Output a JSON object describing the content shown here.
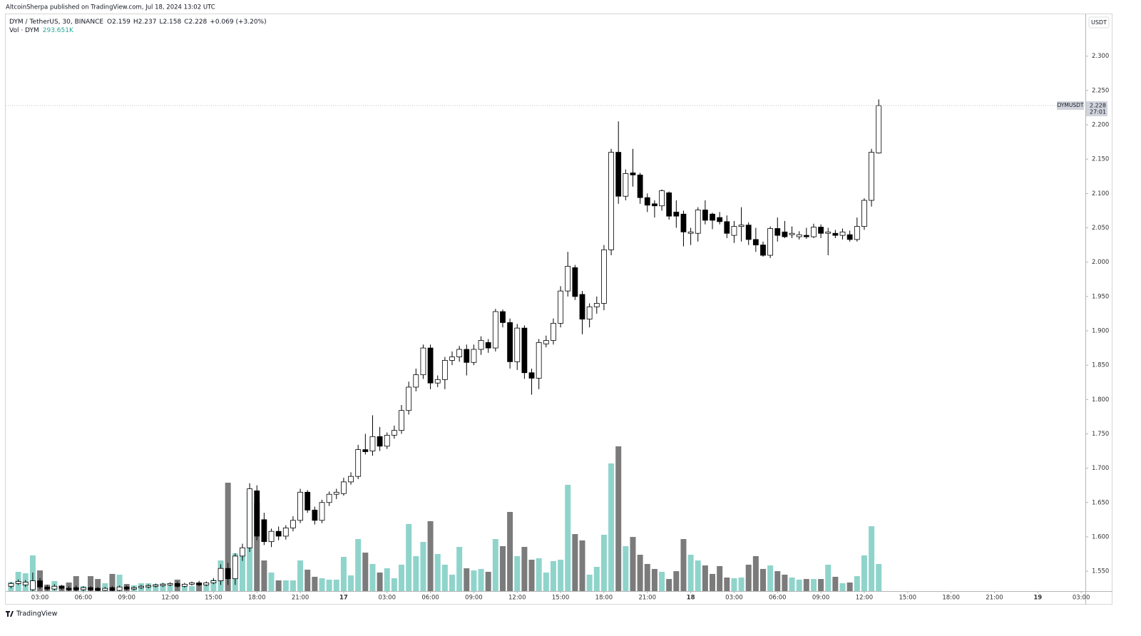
{
  "header": {
    "publisher": "AltcoinSherpa published on TradingView.com, Jul 18, 2024 13:02 UTC",
    "logo": "TradingView"
  },
  "chart_data": {
    "type": "candlestick",
    "symbol": "DYM / TetherUS, 30, BINANCE",
    "ohlc_legend": [
      "O2.159",
      "H2.237",
      "L2.158",
      "C2.228",
      "+0.069 (+3.20%)"
    ],
    "volume_label": "Vol · DYM",
    "volume_last_label": "293.651K",
    "currency": "USDT",
    "price_tag": {
      "name": "DYMUSDT",
      "label": "2.228",
      "countdown": "27:01"
    },
    "up_color": "#ffffff",
    "down_color": "#000000",
    "wick_color": "#000000",
    "volume_up_color": "#8fd4cb",
    "volume_down_color": "#7b7b7b",
    "xlim": [
      0.63,
      75.29
    ],
    "xticks": [
      {
        "value": 3,
        "label": "03:00"
      },
      {
        "value": 6,
        "label": "06:00"
      },
      {
        "value": 9,
        "label": "09:00"
      },
      {
        "value": 12,
        "label": "12:00"
      },
      {
        "value": 15,
        "label": "15:00"
      },
      {
        "value": 18,
        "label": "18:00"
      },
      {
        "value": 21,
        "label": "21:00"
      },
      {
        "value": 24,
        "label": "17"
      },
      {
        "value": 27,
        "label": "03:00"
      },
      {
        "value": 30,
        "label": "06:00"
      },
      {
        "value": 33,
        "label": "09:00"
      },
      {
        "value": 36,
        "label": "12:00"
      },
      {
        "value": 39,
        "label": "15:00"
      },
      {
        "value": 42,
        "label": "18:00"
      },
      {
        "value": 45,
        "label": "21:00"
      },
      {
        "value": 48,
        "label": "18"
      },
      {
        "value": 51,
        "label": "03:00"
      },
      {
        "value": 54,
        "label": "06:00"
      },
      {
        "value": 57,
        "label": "09:00"
      },
      {
        "value": 60,
        "label": "12:00"
      },
      {
        "value": 63,
        "label": "15:00"
      },
      {
        "value": 66,
        "label": "18:00"
      },
      {
        "value": 69,
        "label": "21:00"
      },
      {
        "value": 72,
        "label": "19"
      },
      {
        "value": 75,
        "label": "03:00"
      }
    ],
    "ylim": [
      1.521,
      2.361
    ],
    "yticks": [
      {
        "value": 1.55,
        "label": "1.550"
      },
      {
        "value": 1.6,
        "label": "1.600"
      },
      {
        "value": 1.65,
        "label": "1.650"
      },
      {
        "value": 1.7,
        "label": "1.700"
      },
      {
        "value": 1.75,
        "label": "1.750"
      },
      {
        "value": 1.8,
        "label": "1.800"
      },
      {
        "value": 1.85,
        "label": "1.850"
      },
      {
        "value": 1.9,
        "label": "1.900"
      },
      {
        "value": 1.95,
        "label": "1.950"
      },
      {
        "value": 2.0,
        "label": "2.000"
      },
      {
        "value": 2.05,
        "label": "2.050"
      },
      {
        "value": 2.1,
        "label": "2.100"
      },
      {
        "value": 2.15,
        "label": "2.150"
      },
      {
        "value": 2.2,
        "label": "2.200"
      },
      {
        "value": 2.25,
        "label": "2.250"
      },
      {
        "value": 2.3,
        "label": "2.300"
      }
    ],
    "x": [
      1,
      1.5,
      2,
      2.5,
      3,
      3.5,
      4,
      4.5,
      5,
      5.5,
      6,
      6.5,
      7,
      7.5,
      8,
      8.5,
      9,
      9.5,
      10,
      10.5,
      11,
      11.5,
      12,
      12.5,
      13,
      13.5,
      14,
      14.5,
      15,
      15.5,
      16,
      16.5,
      17,
      17.5,
      18,
      18.5,
      19,
      19.5,
      20,
      20.5,
      21,
      21.5,
      22,
      22.5,
      23,
      23.5,
      24,
      24.5,
      25,
      25.5,
      26,
      26.5,
      27,
      27.5,
      28,
      28.5,
      29,
      29.5,
      30,
      30.5,
      31,
      31.5,
      32,
      32.5,
      33,
      33.5,
      34,
      34.5,
      35,
      35.5,
      36,
      36.5,
      37,
      37.5,
      38,
      38.5,
      39,
      39.5,
      40,
      40.5,
      41,
      41.5,
      42,
      42.5,
      43,
      43.5,
      44,
      44.5,
      45,
      45.5,
      46,
      46.5,
      47,
      47.5,
      48,
      48.5,
      49,
      49.5,
      50,
      50.5,
      51,
      51.5,
      52,
      52.5,
      53,
      53.5,
      54,
      54.5,
      55,
      55.5,
      56,
      56.5,
      57,
      57.5,
      58,
      58.5,
      59,
      59.5,
      60,
      60.5,
      61
    ],
    "open": [
      1.528,
      1.532,
      1.53,
      1.523,
      1.536,
      1.527,
      1.524,
      1.528,
      1.525,
      1.526,
      1.523,
      1.526,
      1.525,
      1.522,
      1.526,
      1.522,
      1.527,
      1.524,
      1.526,
      1.527,
      1.528,
      1.529,
      1.53,
      1.532,
      1.528,
      1.531,
      1.533,
      1.53,
      1.533,
      1.536,
      1.554,
      1.539,
      1.572,
      1.584,
      1.667,
      1.625,
      1.593,
      1.608,
      1.601,
      1.613,
      1.624,
      1.665,
      1.639,
      1.624,
      1.65,
      1.662,
      1.663,
      1.68,
      1.688,
      1.727,
      1.725,
      1.746,
      1.732,
      1.748,
      1.755,
      1.784,
      1.818,
      1.836,
      1.875,
      1.824,
      1.829,
      1.857,
      1.862,
      1.873,
      1.854,
      1.873,
      1.883,
      1.875,
      1.928,
      1.912,
      1.855,
      1.904,
      1.839,
      1.831,
      1.881,
      1.886,
      1.911,
      1.958,
      1.992,
      1.953,
      1.917,
      1.935,
      1.94,
      2.018,
      2.16,
      2.096,
      2.13,
      2.127,
      2.094,
      2.085,
      2.082,
      2.101,
      2.073,
      2.07,
      2.042,
      2.042,
      2.076,
      2.07,
      2.065,
      2.059,
      2.039,
      2.052,
      2.054,
      2.033,
      2.025,
      2.01,
      2.049,
      2.044,
      2.04,
      2.037,
      2.039,
      2.037,
      2.051,
      2.042,
      2.042,
      2.039,
      2.04,
      2.033,
      2.052,
      2.09,
      2.159
    ],
    "high": [
      1.534,
      1.538,
      1.537,
      1.548,
      1.54,
      1.53,
      1.531,
      1.53,
      1.528,
      1.529,
      1.528,
      1.528,
      1.527,
      1.527,
      1.528,
      1.529,
      1.529,
      1.528,
      1.53,
      1.531,
      1.532,
      1.533,
      1.534,
      1.535,
      1.533,
      1.535,
      1.536,
      1.535,
      1.54,
      1.56,
      1.562,
      1.576,
      1.59,
      1.678,
      1.675,
      1.635,
      1.612,
      1.615,
      1.617,
      1.63,
      1.67,
      1.668,
      1.644,
      1.654,
      1.666,
      1.67,
      1.686,
      1.694,
      1.734,
      1.75,
      1.777,
      1.76,
      1.752,
      1.762,
      1.792,
      1.826,
      1.845,
      1.88,
      1.88,
      1.835,
      1.862,
      1.87,
      1.878,
      1.88,
      1.88,
      1.892,
      1.888,
      1.932,
      1.931,
      1.918,
      1.91,
      1.908,
      1.845,
      1.888,
      1.893,
      1.918,
      1.965,
      2.015,
      1.996,
      1.958,
      1.94,
      1.95,
      2.025,
      2.165,
      2.205,
      2.135,
      2.165,
      2.13,
      2.1,
      2.09,
      2.106,
      2.103,
      2.09,
      2.075,
      2.05,
      2.08,
      2.09,
      2.072,
      2.073,
      2.068,
      2.06,
      2.08,
      2.058,
      2.05,
      2.03,
      2.052,
      2.065,
      2.06,
      2.052,
      2.045,
      2.05,
      2.056,
      2.055,
      2.05,
      2.047,
      2.049,
      2.046,
      2.065,
      2.093,
      2.165,
      2.237
    ],
    "low": [
      1.525,
      1.53,
      1.527,
      1.521,
      1.524,
      1.522,
      1.522,
      1.523,
      1.521,
      1.521,
      1.521,
      1.521,
      1.521,
      1.521,
      1.521,
      1.521,
      1.522,
      1.522,
      1.524,
      1.525,
      1.526,
      1.527,
      1.528,
      1.526,
      1.526,
      1.529,
      1.528,
      1.528,
      1.531,
      1.53,
      1.53,
      1.53,
      1.565,
      1.578,
      1.595,
      1.588,
      1.585,
      1.595,
      1.596,
      1.608,
      1.62,
      1.635,
      1.618,
      1.62,
      1.645,
      1.655,
      1.66,
      1.676,
      1.684,
      1.72,
      1.718,
      1.725,
      1.728,
      1.743,
      1.75,
      1.778,
      1.812,
      1.83,
      1.815,
      1.818,
      1.815,
      1.85,
      1.855,
      1.835,
      1.85,
      1.865,
      1.868,
      1.87,
      1.905,
      1.845,
      1.843,
      1.83,
      1.807,
      1.815,
      1.876,
      1.88,
      1.905,
      1.95,
      1.945,
      1.895,
      1.905,
      1.925,
      1.93,
      2.01,
      2.085,
      2.09,
      2.11,
      2.085,
      2.073,
      2.065,
      2.075,
      2.062,
      2.05,
      2.023,
      2.025,
      2.03,
      2.055,
      2.048,
      2.055,
      2.035,
      2.028,
      2.03,
      2.025,
      2.015,
      2.008,
      2.006,
      2.03,
      2.035,
      2.035,
      2.033,
      2.034,
      2.035,
      2.035,
      2.01,
      2.035,
      2.033,
      2.03,
      2.03,
      2.047,
      2.081,
      2.158
    ],
    "close": [
      1.532,
      1.535,
      1.534,
      1.536,
      1.527,
      1.524,
      1.528,
      1.525,
      1.523,
      1.523,
      1.526,
      1.523,
      1.522,
      1.525,
      1.522,
      1.527,
      1.524,
      1.526,
      1.528,
      1.529,
      1.53,
      1.531,
      1.532,
      1.528,
      1.531,
      1.533,
      1.53,
      1.533,
      1.536,
      1.554,
      1.539,
      1.572,
      1.584,
      1.67,
      1.601,
      1.593,
      1.608,
      1.601,
      1.613,
      1.624,
      1.665,
      1.639,
      1.624,
      1.65,
      1.662,
      1.665,
      1.68,
      1.688,
      1.727,
      1.724,
      1.746,
      1.732,
      1.748,
      1.755,
      1.784,
      1.818,
      1.836,
      1.875,
      1.824,
      1.829,
      1.857,
      1.862,
      1.873,
      1.854,
      1.873,
      1.886,
      1.875,
      1.928,
      1.912,
      1.855,
      1.904,
      1.839,
      1.831,
      1.883,
      1.886,
      1.911,
      1.958,
      1.994,
      1.95,
      1.917,
      1.935,
      1.94,
      2.018,
      2.16,
      2.096,
      2.129,
      2.127,
      2.094,
      2.083,
      2.082,
      2.104,
      2.067,
      2.067,
      2.044,
      2.044,
      2.076,
      2.061,
      2.061,
      2.059,
      2.042,
      2.052,
      2.054,
      2.033,
      2.025,
      2.01,
      2.049,
      2.039,
      2.037,
      2.042,
      2.04,
      2.037,
      2.051,
      2.042,
      2.044,
      2.039,
      2.044,
      2.033,
      2.052,
      2.09,
      2.16,
      2.228
    ],
    "volume": [
      100,
      209,
      193,
      387,
      224,
      70,
      108,
      62,
      93,
      162,
      54,
      162,
      131,
      85,
      186,
      178,
      77,
      62,
      85,
      85,
      77,
      85,
      62,
      124,
      77,
      54,
      85,
      85,
      124,
      332,
      1175,
      410,
      456,
      1074,
      959,
      332,
      201,
      116,
      116,
      116,
      332,
      232,
      155,
      139,
      124,
      124,
      371,
      170,
      564,
      417,
      294,
      201,
      247,
      139,
      286,
      727,
      379,
      533,
      758,
      402,
      286,
      178,
      479,
      247,
      224,
      240,
      209,
      564,
      487,
      858,
      379,
      479,
      340,
      356,
      201,
      325,
      340,
      1152,
      618,
      549,
      178,
      263,
      611,
      1384,
      1569,
      487,
      587,
      394,
      294,
      240,
      209,
      131,
      216,
      564,
      394,
      332,
      278,
      186,
      271,
      147,
      139,
      147,
      286,
      379,
      240,
      278,
      216,
      178,
      147,
      124,
      131,
      131,
      131,
      286,
      155,
      85,
      93,
      162,
      387,
      703,
      293.651
    ]
  }
}
